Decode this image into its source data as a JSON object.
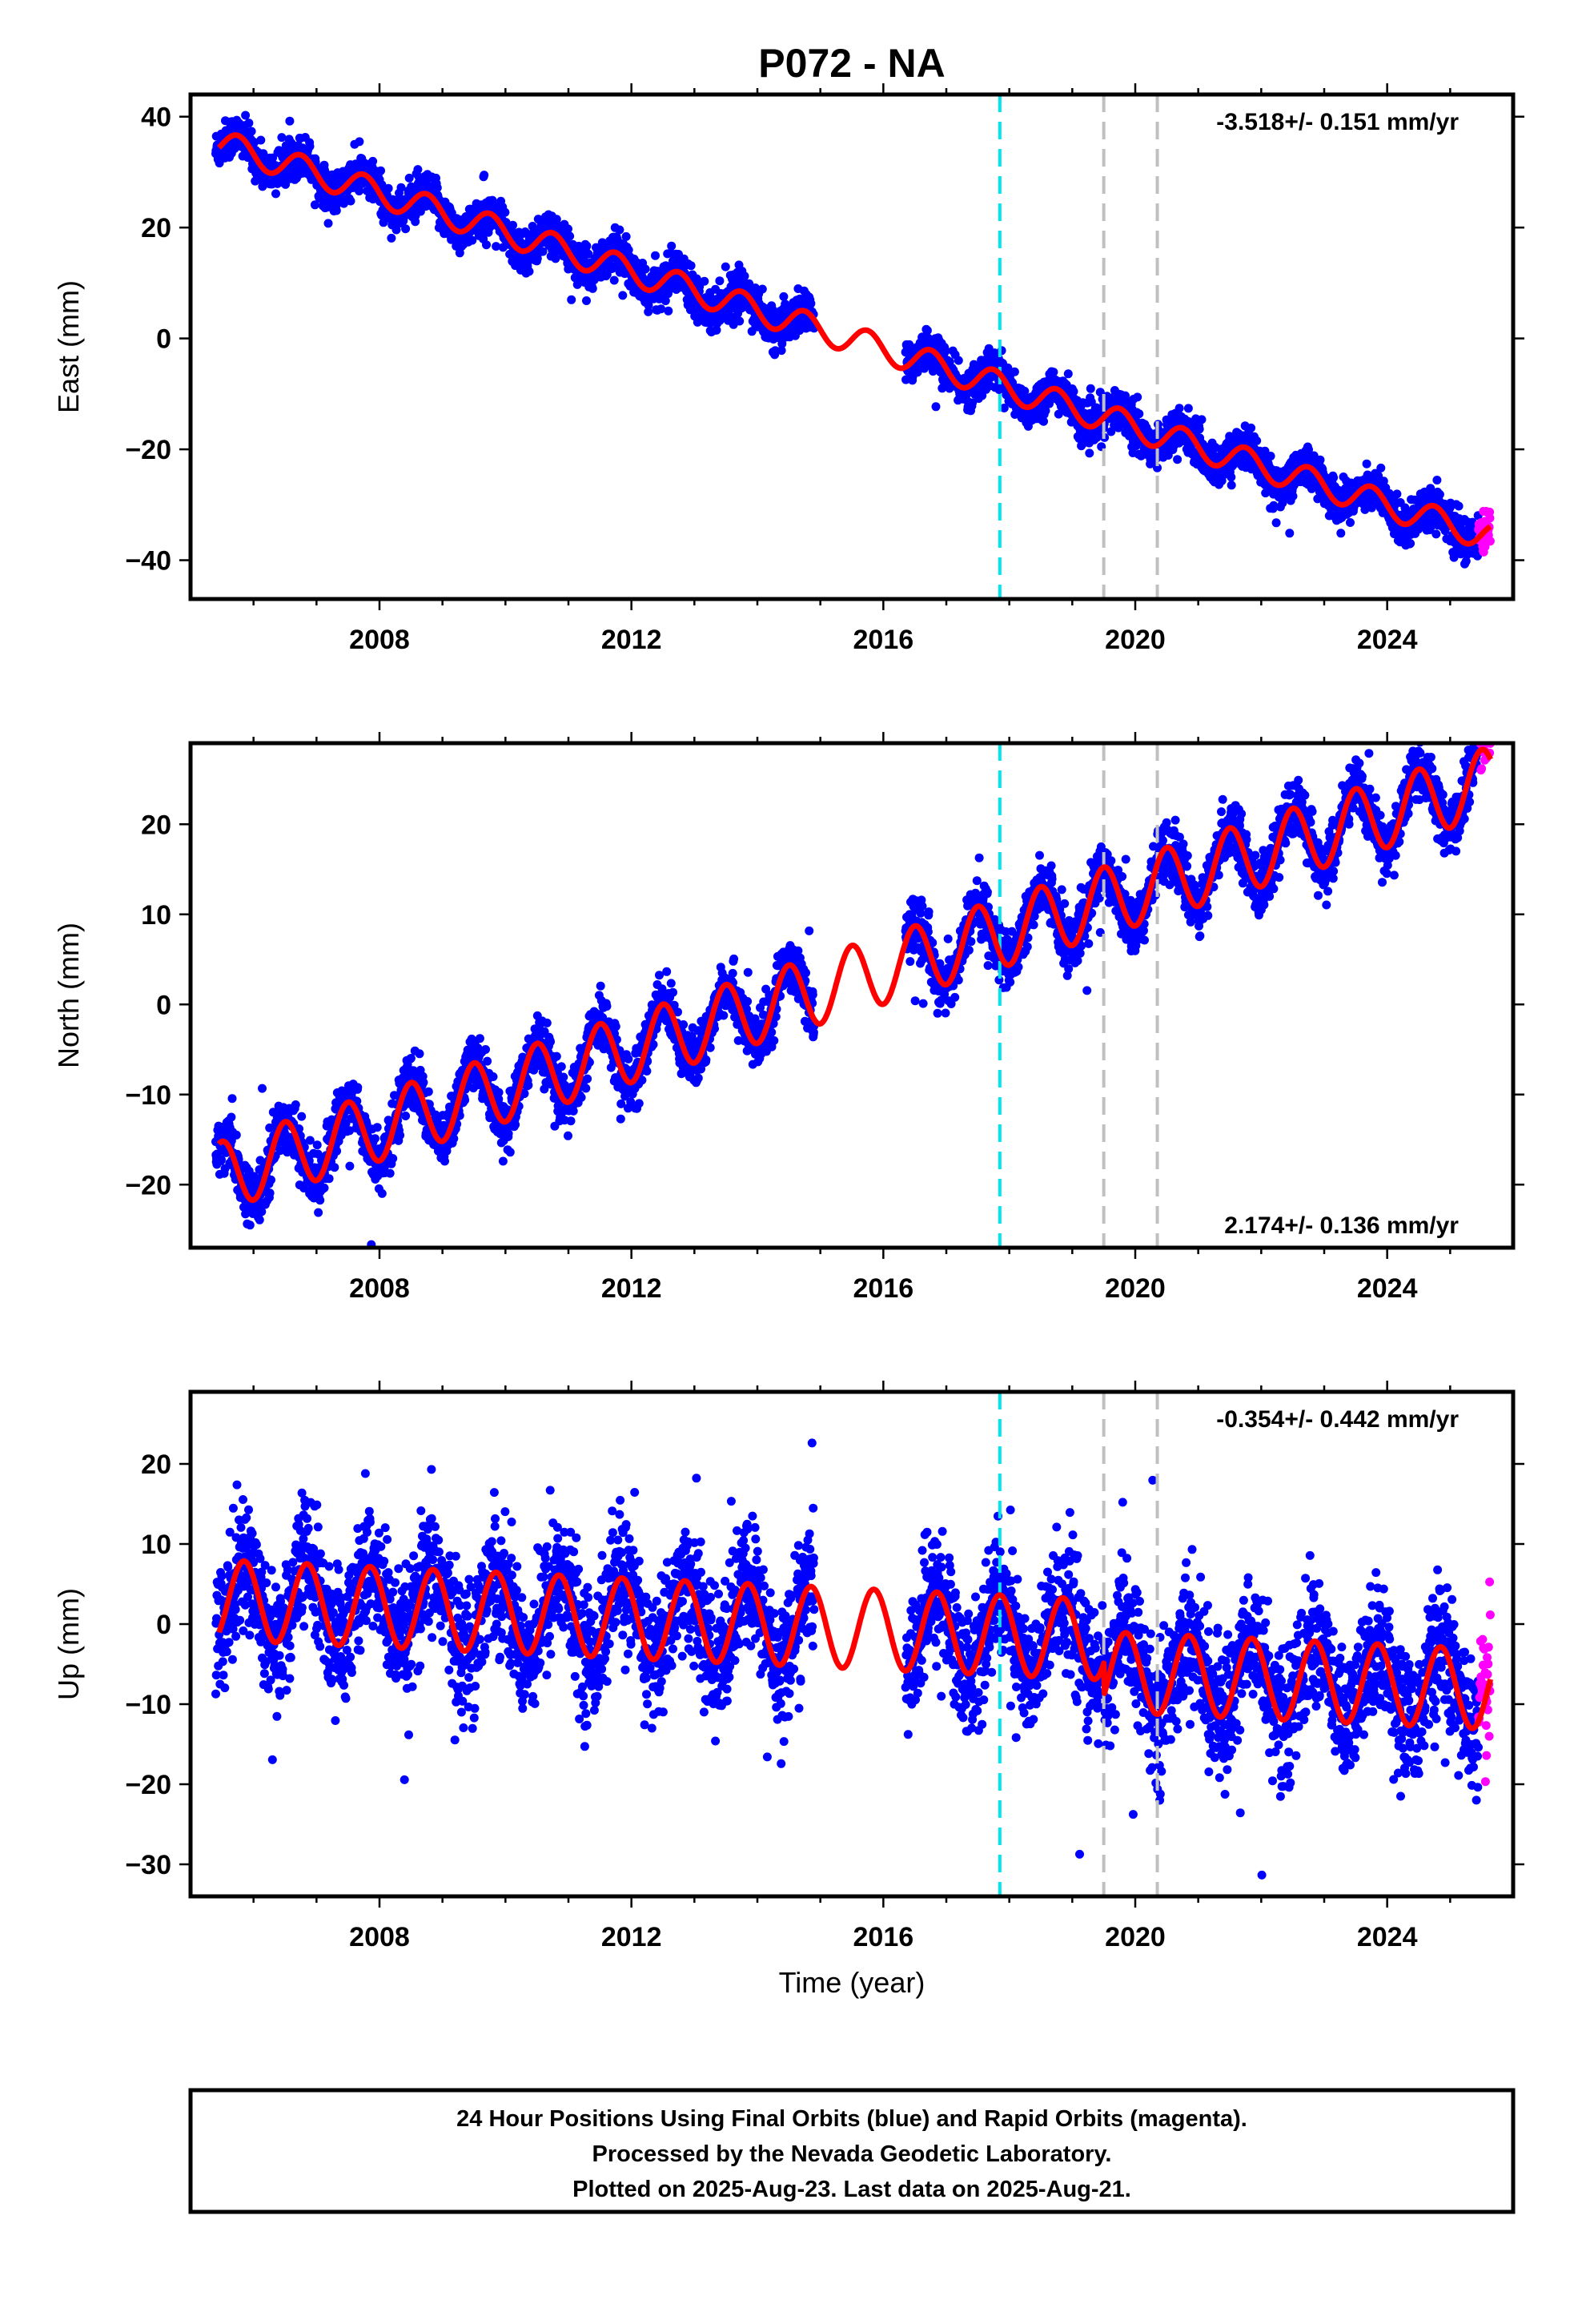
{
  "title": "P072 - NA",
  "footer": {
    "lines": [
      "24 Hour Positions Using Final Orbits (blue) and Rapid Orbits (magenta).",
      "Processed by the Nevada Geodetic Laboratory.",
      "Plotted on 2025-Aug-23. Last data on 2025-Aug-21."
    ]
  },
  "colors": {
    "final_orbits": "#0000ff",
    "rapid_orbits": "#ff00ff",
    "model": "#ff0000",
    "event_cyan": "#00e5ee",
    "event_gray": "#c0c0c0"
  },
  "chart_data": [
    {
      "type": "scatter",
      "ylabel": "East (mm)",
      "xlabel": "",
      "xlim": [
        2005.0,
        2026.0
      ],
      "ylim": [
        -47,
        44
      ],
      "xticks": [
        2008,
        2012,
        2016,
        2020,
        2024
      ],
      "yticks": [
        -40,
        -20,
        0,
        20,
        40
      ],
      "rate_label": "-3.518+/- 0.151 mm/yr",
      "rate_position": "top-right",
      "events": [
        {
          "x": 2017.85,
          "color": "cyan"
        },
        {
          "x": 2019.5,
          "color": "gray"
        },
        {
          "x": 2020.35,
          "color": "gray"
        }
      ],
      "model": {
        "intercept_at_2005.5": 35.0,
        "rate": -3.518,
        "annual_amplitude": 2.5,
        "annual_phase": 0.0
      },
      "data_span": {
        "start": 2005.4,
        "gap": [
          2014.9,
          2016.35
        ],
        "end_final": 2025.45,
        "end_rapid": 2025.64
      },
      "scatter_sd": 1.8,
      "series": [
        {
          "name": "Final Orbits (blue)",
          "color": "#0000ff"
        },
        {
          "name": "Rapid Orbits (magenta)",
          "color": "#ff00ff"
        }
      ]
    },
    {
      "type": "scatter",
      "ylabel": "North (mm)",
      "xlabel": "",
      "xlim": [
        2005.0,
        2026.0
      ],
      "ylim": [
        -27,
        29
      ],
      "xticks": [
        2008,
        2012,
        2016,
        2020,
        2024
      ],
      "yticks": [
        -20,
        -10,
        0,
        10,
        20
      ],
      "rate_label": "2.174+/- 0.136 mm/yr",
      "rate_position": "bottom-right",
      "events": [
        {
          "x": 2017.85,
          "color": "cyan"
        },
        {
          "x": 2019.5,
          "color": "gray"
        },
        {
          "x": 2020.35,
          "color": "gray"
        }
      ],
      "model": {
        "intercept_at_2005.5": -19.0,
        "rate": 2.174,
        "annual_amplitude": 3.8,
        "annual_phase": 0.25
      },
      "data_span": {
        "start": 2005.4,
        "gap": [
          2014.9,
          2016.35
        ],
        "end_final": 2025.45,
        "end_rapid": 2025.64
      },
      "scatter_sd": 1.5,
      "series": [
        {
          "name": "Final Orbits (blue)",
          "color": "#0000ff"
        },
        {
          "name": "Rapid Orbits (magenta)",
          "color": "#ff00ff"
        }
      ]
    },
    {
      "type": "scatter",
      "ylabel": "Up (mm)",
      "xlabel": "Time (year)",
      "xlim": [
        2005.0,
        2026.0
      ],
      "ylim": [
        -34,
        29
      ],
      "xticks": [
        2008,
        2012,
        2016,
        2020,
        2024
      ],
      "yticks": [
        -30,
        -20,
        -10,
        0,
        10,
        20
      ],
      "rate_label": "-0.354+/- 0.442 mm/yr",
      "rate_position": "top-right",
      "events": [
        {
          "x": 2017.85,
          "color": "cyan"
        },
        {
          "x": 2019.5,
          "color": "gray"
        },
        {
          "x": 2020.35,
          "color": "gray"
        }
      ],
      "model": {
        "intercept_at_2005.5": 3.0,
        "rate": -0.354,
        "annual_amplitude": 5.0,
        "annual_phase": -0.1
      },
      "offsets": [
        {
          "x": 2019.5,
          "dy": -4.0
        }
      ],
      "data_span": {
        "start": 2005.4,
        "gap": [
          2014.9,
          2016.35
        ],
        "end_final": 2025.45,
        "end_rapid": 2025.64
      },
      "scatter_sd": 4.0,
      "series": [
        {
          "name": "Final Orbits (blue)",
          "color": "#0000ff"
        },
        {
          "name": "Rapid Orbits (magenta)",
          "color": "#ff00ff"
        }
      ]
    }
  ]
}
